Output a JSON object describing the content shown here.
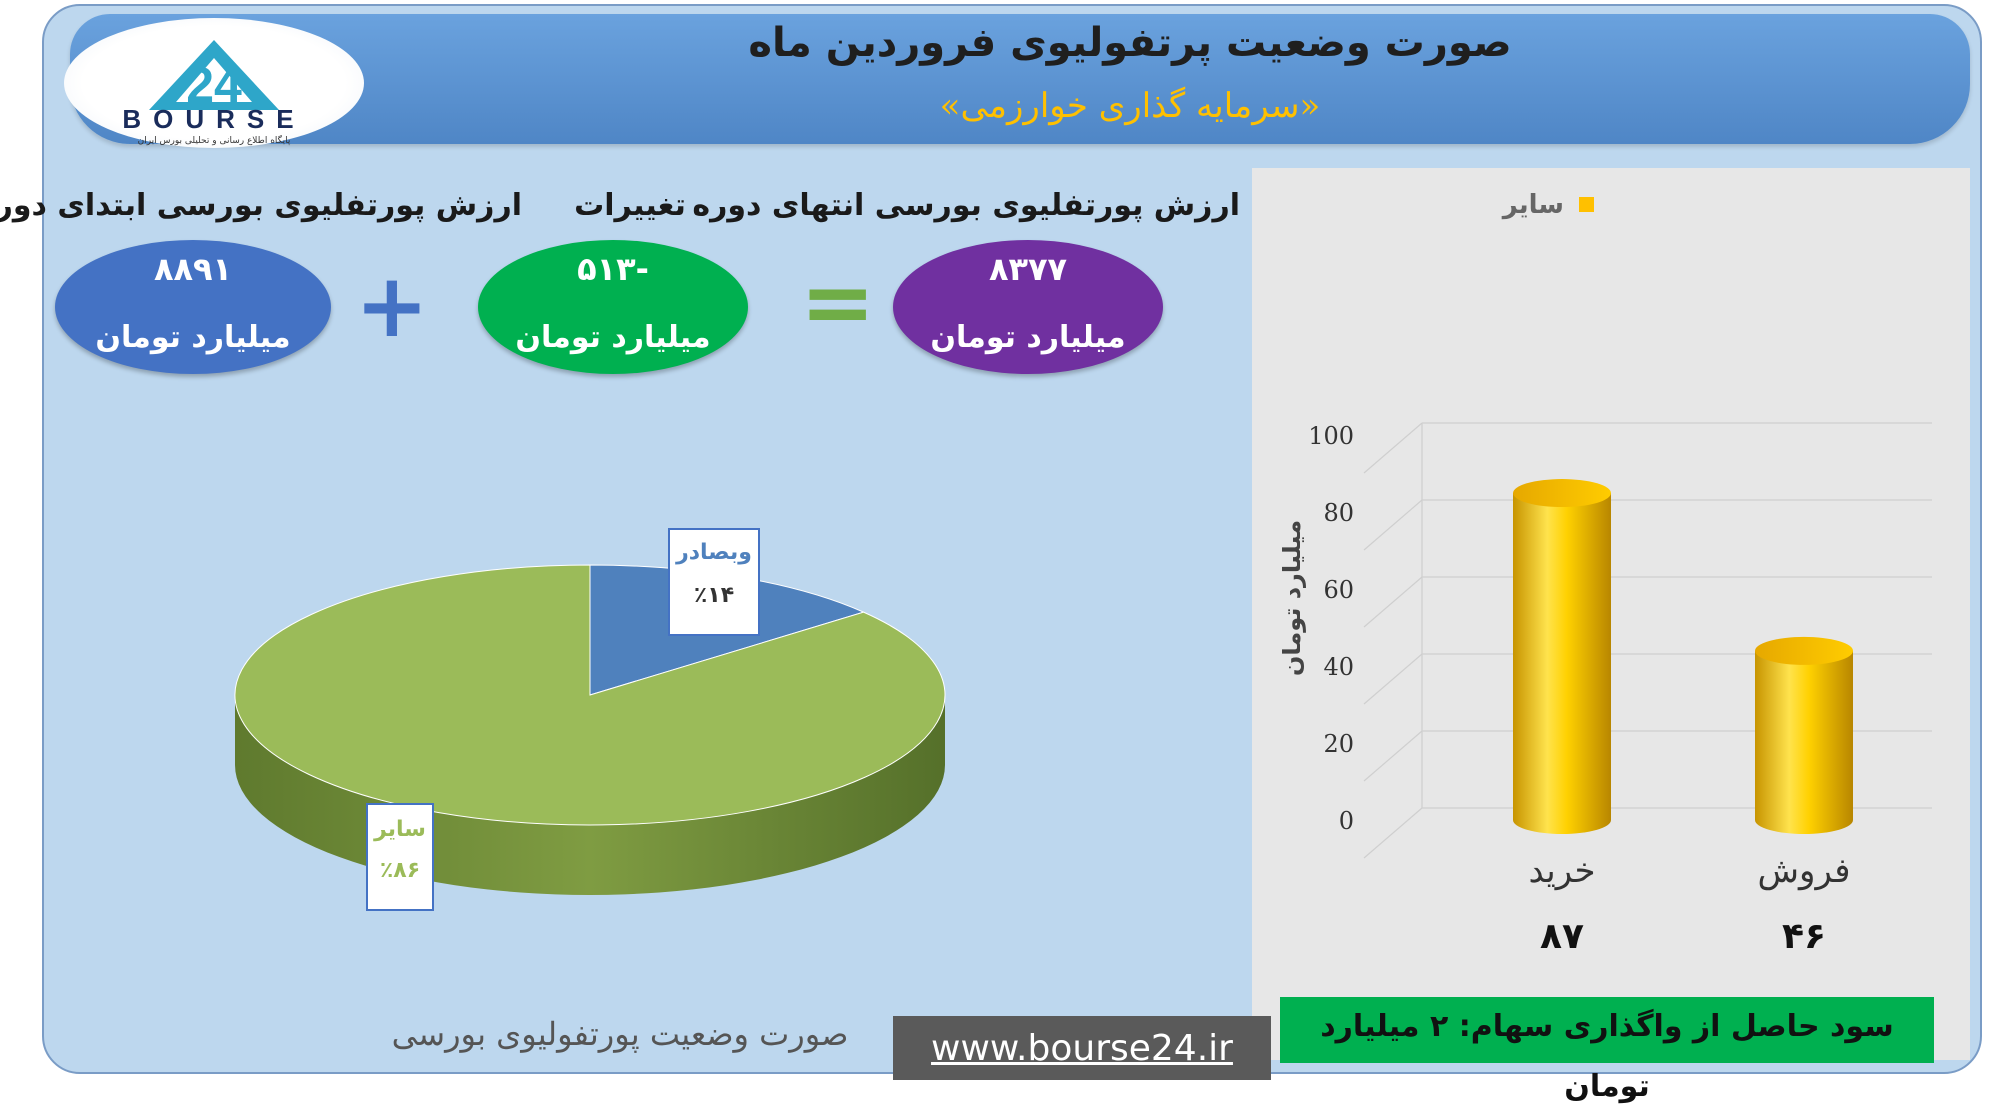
{
  "header": {
    "title": "صورت وضعیت پرتفولیوی فروردین ماه",
    "subtitle": "«سرمایه گذاری خوارزمی»"
  },
  "logo": {
    "number": "24",
    "name": "BOURSE",
    "tagline": "پایگاه اطلاع رسانی و تحلیلی بورس ایران"
  },
  "summary": {
    "start": {
      "label": "ارزش پورتفلیوی بورسی ابتدای دوره",
      "value": "۸۸۹۱",
      "unit": "میلیارد تومان",
      "color": "#4472c4"
    },
    "change": {
      "label": "تغییرات",
      "value": "-۵۱۳",
      "unit": "میلیارد تومان",
      "color": "#00b050"
    },
    "end": {
      "label": "ارزش پورتفلیوی بورسی انتهای دوره",
      "value": "۸۳۷۷",
      "unit": "میلیارد تومان",
      "color": "#7030a0"
    },
    "plus_symbol": "+",
    "equals_symbol": "="
  },
  "chart_data": [
    {
      "type": "pie",
      "title": "صورت وضعیت پورتفولیوی بورسی",
      "slices": [
        {
          "name": "وبصادر",
          "value": 14,
          "label": "٪۱۴",
          "color": "#4f81bd"
        },
        {
          "name": "سایر",
          "value": 86,
          "label": "٪۸۶",
          "color": "#9bbb59"
        }
      ]
    },
    {
      "type": "bar",
      "categories": [
        "خرید",
        "فروش"
      ],
      "series": [
        {
          "name": "سایر",
          "values": [
            87,
            46
          ],
          "color": "#ffc000"
        }
      ],
      "value_labels": [
        "۸۷",
        "۴۶"
      ],
      "ylabel": "میلیارد تومان",
      "ylim": [
        0,
        100
      ],
      "yticks": [
        "0",
        "20",
        "40",
        "60",
        "80",
        "100"
      ],
      "legend": "top"
    }
  ],
  "profit_note": "سود حاصل از واگذاری سهام: ۲ میلیارد تومان",
  "website": "www.bourse24.ir"
}
